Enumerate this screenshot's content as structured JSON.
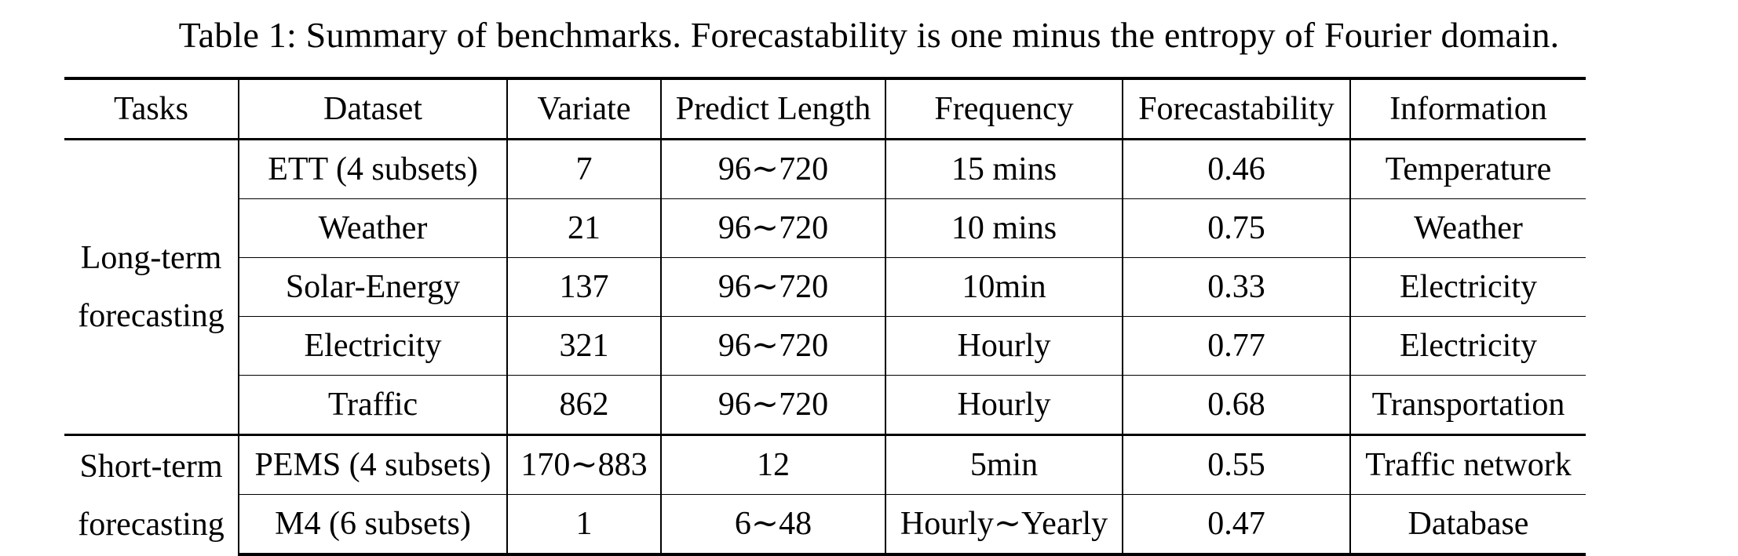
{
  "caption": "Table 1: Summary of benchmarks. Forecastability is one minus the entropy of Fourier domain.",
  "columns": [
    "Tasks",
    "Dataset",
    "Variate",
    "Predict Length",
    "Frequency",
    "Forecastability",
    "Information"
  ],
  "groups": [
    {
      "task_lines": [
        "Long-term",
        "forecasting"
      ],
      "rows": [
        {
          "dataset": "ETT (4 subsets)",
          "variate": "7",
          "predict_length": "96∼720",
          "frequency": "15 mins",
          "forecastability": "0.46",
          "information": "Temperature"
        },
        {
          "dataset": "Weather",
          "variate": "21",
          "predict_length": "96∼720",
          "frequency": "10 mins",
          "forecastability": "0.75",
          "information": "Weather"
        },
        {
          "dataset": "Solar-Energy",
          "variate": "137",
          "predict_length": "96∼720",
          "frequency": "10min",
          "forecastability": "0.33",
          "information": "Electricity"
        },
        {
          "dataset": "Electricity",
          "variate": "321",
          "predict_length": "96∼720",
          "frequency": "Hourly",
          "forecastability": "0.77",
          "information": "Electricity"
        },
        {
          "dataset": "Traffic",
          "variate": "862",
          "predict_length": "96∼720",
          "frequency": "Hourly",
          "forecastability": "0.68",
          "information": "Transportation"
        }
      ]
    },
    {
      "task_lines": [
        "Short-term",
        "forecasting"
      ],
      "rows": [
        {
          "dataset": "PEMS (4 subsets)",
          "variate": "170∼883",
          "predict_length": "12",
          "frequency": "5min",
          "forecastability": "0.55",
          "information": "Traffic network"
        },
        {
          "dataset": "M4 (6 subsets)",
          "variate": "1",
          "predict_length": "6∼48",
          "frequency": "Hourly∼Yearly",
          "forecastability": "0.47",
          "information": "Database"
        }
      ]
    }
  ]
}
